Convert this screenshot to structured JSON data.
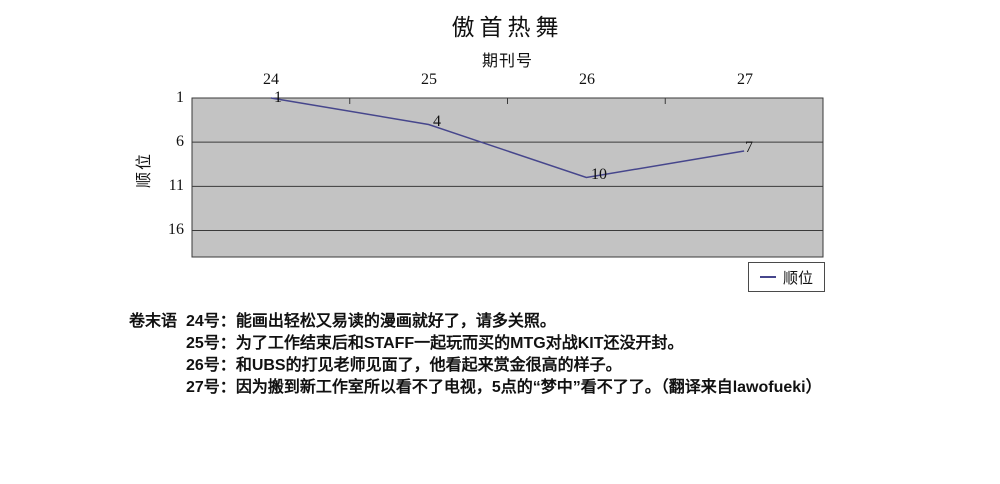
{
  "chart": {
    "title": "傲首热舞",
    "x_axis_title": "期刊号",
    "y_axis_title": "顺位",
    "legend_label": "顺位"
  },
  "chart_data": {
    "type": "line",
    "title": "傲首热舞",
    "xlabel": "期刊号",
    "ylabel": "顺位",
    "categories": [
      "24",
      "25",
      "26",
      "27"
    ],
    "series": [
      {
        "name": "顺位",
        "values": [
          1,
          4,
          10,
          7
        ]
      }
    ],
    "y_ticks": [
      1,
      6,
      11,
      16
    ],
    "ylim": [
      1,
      19
    ],
    "y_axis_reversed": true,
    "x_axis_position": "top",
    "grid": true,
    "legend_position": "bottom-right",
    "plot_bg_color": "#c3c3c3",
    "line_color": "#46468c",
    "grid_color": "#3a3a3a"
  },
  "notes": {
    "heading": "卷末语",
    "items": [
      {
        "label": "24号：",
        "text": "能画出轻松又易读的漫画就好了，请多关照。"
      },
      {
        "label": "25号：",
        "text": "为了工作结束后和STAFF一起玩而买的MTG对战KIT还没开封。"
      },
      {
        "label": "26号：",
        "text": "和UBS的打见老师见面了，他看起来赏金很高的样子。"
      },
      {
        "label": "27号：",
        "text": "因为搬到新工作室所以看不了电视，5点的“梦中”看不了了。（翻译来自lawofueki）"
      }
    ]
  }
}
